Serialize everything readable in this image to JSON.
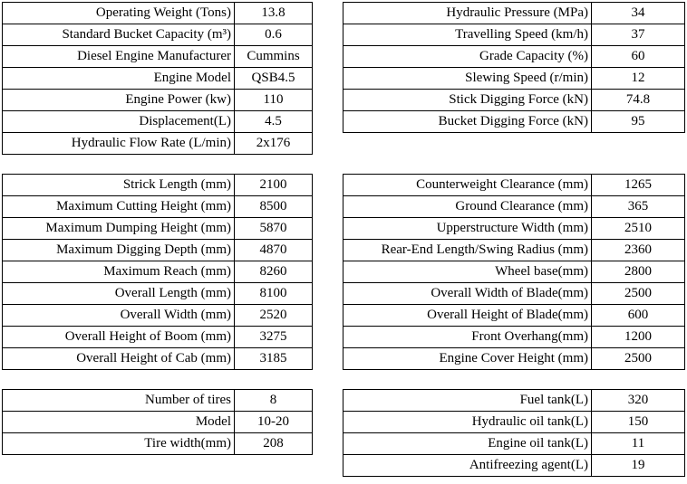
{
  "page": {
    "background_color": "#ffffff",
    "text_color": "#000000",
    "border_color": "#000000"
  },
  "tables": {
    "engine": {
      "rows": [
        {
          "label": "Operating Weight (Tons)",
          "value": "13.8"
        },
        {
          "label": "Standard Bucket Capacity (m³)",
          "value": "0.6"
        },
        {
          "label": "Diesel Engine Manufacturer",
          "value": "Cummins"
        },
        {
          "label": "Engine Model",
          "value": "QSB4.5"
        },
        {
          "label": "Engine Power (kw)",
          "value": "110"
        },
        {
          "label": "Displacement(L)",
          "value": "4.5"
        },
        {
          "label": "Hydraulic Flow Rate (L/min)",
          "value": "2x176"
        }
      ]
    },
    "performance": {
      "rows": [
        {
          "label": "Hydraulic Pressure (MPa)",
          "value": "34"
        },
        {
          "label": "Travelling Speed (km/h)",
          "value": "37"
        },
        {
          "label": "Grade Capacity (%)",
          "value": "60"
        },
        {
          "label": "Slewing Speed (r/min)",
          "value": "12"
        },
        {
          "label": "Stick Digging Force (kN)",
          "value": "74.8"
        },
        {
          "label": "Bucket Digging Force (kN)",
          "value": "95"
        }
      ]
    },
    "working_ranges": {
      "rows": [
        {
          "label": "Strick Length (mm)",
          "value": "2100"
        },
        {
          "label": "Maximum Cutting Height (mm)",
          "value": "8500"
        },
        {
          "label": "Maximum Dumping Height (mm)",
          "value": "5870"
        },
        {
          "label": "Maximum Digging Depth (mm)",
          "value": "4870"
        },
        {
          "label": "Maximum Reach (mm)",
          "value": "8260"
        },
        {
          "label": "Overall Length (mm)",
          "value": "8100"
        },
        {
          "label": "Overall Width (mm)",
          "value": "2520"
        },
        {
          "label": "Overall Height of Boom (mm)",
          "value": "3275"
        },
        {
          "label": "Overall Height of Cab (mm)",
          "value": "3185"
        }
      ]
    },
    "dimensions": {
      "rows": [
        {
          "label": "Counterweight Clearance (mm)",
          "value": "1265"
        },
        {
          "label": "Ground Clearance (mm)",
          "value": "365"
        },
        {
          "label": "Upperstructure Width (mm)",
          "value": "2510"
        },
        {
          "label": "Rear-End Length/Swing Radius (mm)",
          "value": "2360"
        },
        {
          "label": "Wheel base(mm)",
          "value": "2800"
        },
        {
          "label": "Overall Width of Blade(mm)",
          "value": "2500"
        },
        {
          "label": "Overall Height of Blade(mm)",
          "value": "600"
        },
        {
          "label": "Front Overhang(mm)",
          "value": "1200"
        },
        {
          "label": "Engine Cover Height (mm)",
          "value": "2500"
        }
      ]
    },
    "tires": {
      "rows": [
        {
          "label": "Number of tires",
          "value": "8"
        },
        {
          "label": "Model",
          "value": "10-20"
        },
        {
          "label": "Tire width(mm)",
          "value": "208"
        }
      ]
    },
    "capacities": {
      "rows": [
        {
          "label": "Fuel tank(L)",
          "value": "320"
        },
        {
          "label": "Hydraulic oil tank(L)",
          "value": "150"
        },
        {
          "label": "Engine oil tank(L)",
          "value": "11"
        },
        {
          "label": "Antifreezing agent(L)",
          "value": "19"
        }
      ]
    }
  }
}
